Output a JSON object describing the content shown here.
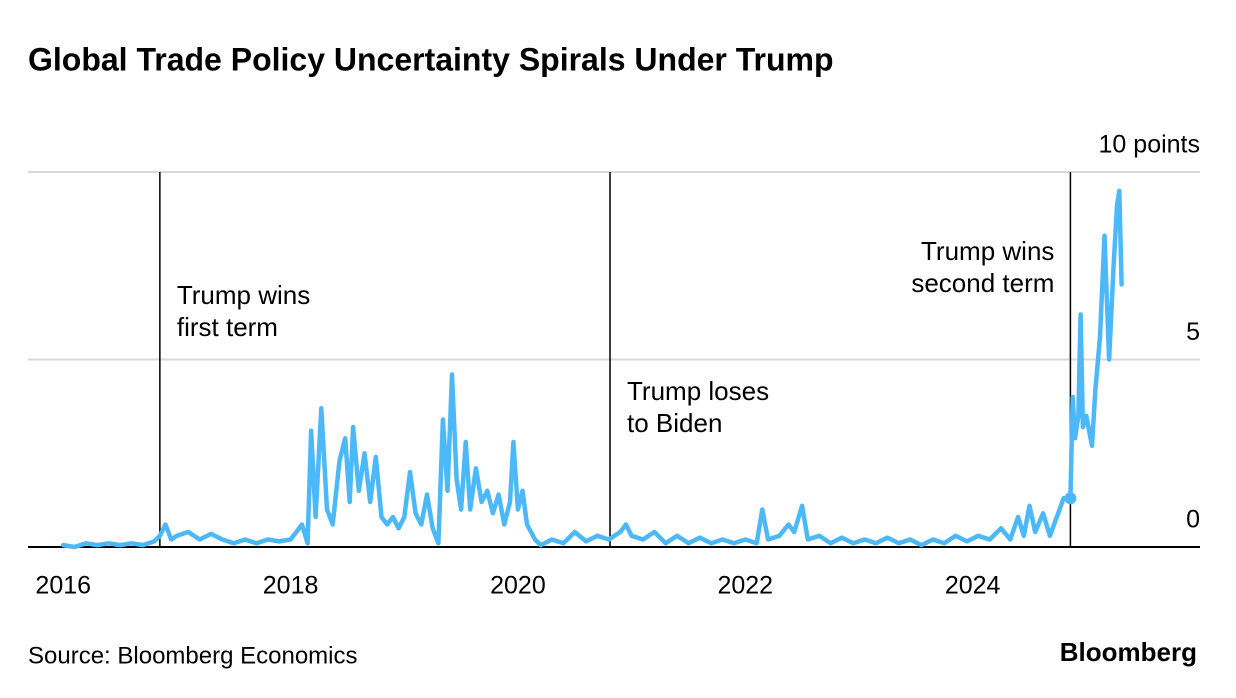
{
  "chart_data": {
    "type": "line",
    "title": "Global Trade Policy Uncertainty Spirals Under Trump",
    "source": "Source: Bloomberg Economics",
    "brand": "Bloomberg",
    "x": [
      2016.0,
      2016.1,
      2016.2,
      2016.3,
      2016.4,
      2016.5,
      2016.6,
      2016.7,
      2016.8,
      2016.85,
      2016.9,
      2016.95,
      2017.0,
      2017.1,
      2017.2,
      2017.3,
      2017.4,
      2017.5,
      2017.6,
      2017.7,
      2017.8,
      2017.9,
      2018.0,
      2018.1,
      2018.15,
      2018.18,
      2018.22,
      2018.27,
      2018.32,
      2018.37,
      2018.43,
      2018.48,
      2018.52,
      2018.55,
      2018.6,
      2018.65,
      2018.7,
      2018.75,
      2018.8,
      2018.85,
      2018.9,
      2018.95,
      2019.0,
      2019.05,
      2019.1,
      2019.15,
      2019.2,
      2019.25,
      2019.3,
      2019.34,
      2019.38,
      2019.42,
      2019.46,
      2019.5,
      2019.54,
      2019.58,
      2019.63,
      2019.68,
      2019.73,
      2019.78,
      2019.83,
      2019.88,
      2019.93,
      2019.96,
      2020.0,
      2020.04,
      2020.08,
      2020.15,
      2020.2,
      2020.3,
      2020.4,
      2020.5,
      2020.6,
      2020.7,
      2020.8,
      2020.9,
      2020.95,
      2021.0,
      2021.1,
      2021.2,
      2021.3,
      2021.4,
      2021.5,
      2021.6,
      2021.7,
      2021.8,
      2021.9,
      2022.0,
      2022.1,
      2022.15,
      2022.2,
      2022.3,
      2022.38,
      2022.43,
      2022.5,
      2022.55,
      2022.65,
      2022.75,
      2022.85,
      2022.95,
      2023.05,
      2023.15,
      2023.25,
      2023.35,
      2023.45,
      2023.55,
      2023.65,
      2023.75,
      2023.85,
      2023.95,
      2024.05,
      2024.15,
      2024.25,
      2024.33,
      2024.4,
      2024.45,
      2024.5,
      2024.55,
      2024.62,
      2024.68,
      2024.74,
      2024.8,
      2024.86,
      2024.88,
      2024.9,
      2024.93,
      2024.95,
      2024.97,
      2025.0,
      2025.05,
      2025.08,
      2025.12,
      2025.16,
      2025.2,
      2025.24,
      2025.27,
      2025.29,
      2025.31
    ],
    "series": [
      {
        "color": "#4db8f7",
        "values": [
          0.05,
          0.0,
          0.1,
          0.05,
          0.1,
          0.05,
          0.1,
          0.05,
          0.15,
          0.3,
          0.6,
          0.2,
          0.3,
          0.4,
          0.2,
          0.35,
          0.2,
          0.1,
          0.2,
          0.1,
          0.2,
          0.15,
          0.2,
          0.6,
          0.1,
          3.1,
          0.8,
          3.7,
          1.0,
          0.6,
          2.3,
          2.9,
          1.2,
          3.2,
          1.5,
          2.5,
          1.2,
          2.4,
          0.8,
          0.6,
          0.8,
          0.5,
          0.8,
          2.0,
          0.9,
          0.6,
          1.4,
          0.5,
          0.1,
          3.4,
          1.5,
          4.6,
          1.8,
          1.0,
          2.8,
          1.0,
          2.1,
          1.2,
          1.5,
          0.9,
          1.4,
          0.6,
          1.2,
          2.8,
          1.0,
          1.5,
          0.6,
          0.2,
          0.05,
          0.2,
          0.1,
          0.4,
          0.15,
          0.3,
          0.2,
          0.4,
          0.6,
          0.3,
          0.2,
          0.4,
          0.1,
          0.3,
          0.1,
          0.25,
          0.1,
          0.2,
          0.1,
          0.2,
          0.1,
          1.0,
          0.2,
          0.3,
          0.6,
          0.4,
          1.1,
          0.2,
          0.3,
          0.1,
          0.25,
          0.1,
          0.2,
          0.1,
          0.25,
          0.1,
          0.2,
          0.05,
          0.2,
          0.1,
          0.3,
          0.15,
          0.3,
          0.2,
          0.5,
          0.2,
          0.8,
          0.3,
          1.1,
          0.4,
          0.9,
          0.3,
          0.8,
          1.3,
          1.3,
          4.0,
          2.9,
          3.5,
          6.2,
          3.2,
          3.5,
          2.7,
          4.2,
          5.6,
          8.3,
          5.0,
          7.5,
          9.1,
          9.5,
          7.0
        ]
      }
    ],
    "xlim": [
      2015.69,
      2026.0
    ],
    "xticks": [
      2016,
      2018,
      2020,
      2022,
      2024
    ],
    "ylim": [
      0,
      10
    ],
    "yticks": [
      0,
      5,
      {
        "value": 10,
        "label": "10 points"
      }
    ],
    "grid": true,
    "annotations": [
      {
        "x": 2016.85,
        "text": [
          "Trump wins",
          "first term"
        ]
      },
      {
        "x": 2020.81,
        "text": [
          "Trump loses",
          "to Biden"
        ]
      },
      {
        "x": 2024.86,
        "text": [
          "Trump wins",
          "second term"
        ]
      }
    ]
  }
}
